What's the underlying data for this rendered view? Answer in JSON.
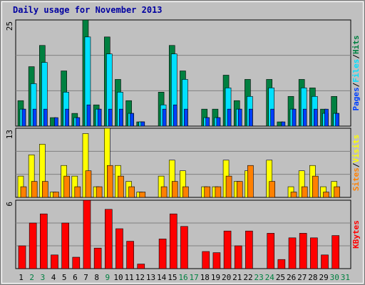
{
  "title": "Daily usage for November 2013",
  "legend_separator": "/",
  "highlight_color": "#008040",
  "highlight_categories": [
    1,
    2,
    8,
    15,
    16,
    22,
    23,
    29,
    30
  ],
  "chart_data": [
    {
      "type": "bar",
      "ylim": [
        0,
        25
      ],
      "yticks": [
        25
      ],
      "series": [
        {
          "name": "Hits",
          "color": "#008040",
          "values": [
            6,
            14,
            19,
            2,
            13,
            3,
            25,
            5,
            21,
            11,
            6,
            1,
            0,
            8,
            19,
            13,
            0,
            4,
            4,
            12,
            6,
            11,
            0,
            11,
            1,
            7,
            11,
            9,
            4,
            7,
            0
          ]
        },
        {
          "name": "Files",
          "color": "#00e0ff",
          "values": [
            4,
            10,
            15,
            0,
            8,
            2,
            21,
            4,
            17,
            8,
            3,
            1,
            0,
            5,
            17,
            11,
            0,
            2,
            2,
            9,
            4,
            7,
            0,
            9,
            0,
            4,
            9,
            7,
            3,
            3,
            0
          ]
        },
        {
          "name": "Pages",
          "color": "#0040ff",
          "values": [
            4,
            4,
            4,
            2,
            4,
            2,
            5,
            4,
            4,
            4,
            3,
            1,
            0,
            4,
            5,
            4,
            0,
            2,
            2,
            4,
            4,
            4,
            0,
            4,
            1,
            4,
            4,
            4,
            4,
            3,
            0
          ]
        }
      ]
    },
    {
      "type": "bar",
      "ylim": [
        0,
        13
      ],
      "yticks": [
        13
      ],
      "series": [
        {
          "name": "Visits",
          "color": "#ffff00",
          "values": [
            4,
            8,
            10,
            1,
            6,
            4,
            12,
            2,
            13,
            6,
            3,
            1,
            0,
            4,
            7,
            5,
            0,
            2,
            2,
            7,
            3,
            5,
            0,
            7,
            0,
            2,
            5,
            6,
            2,
            3,
            0
          ]
        },
        {
          "name": "Sites",
          "color": "#ff8000",
          "values": [
            2,
            3,
            3,
            1,
            4,
            2,
            5,
            2,
            6,
            4,
            2,
            1,
            0,
            2,
            3,
            2,
            0,
            2,
            2,
            4,
            3,
            6,
            0,
            3,
            0,
            1,
            2,
            4,
            1,
            2,
            0
          ]
        }
      ]
    },
    {
      "type": "bar",
      "ylim": [
        0,
        6
      ],
      "yticks": [
        6
      ],
      "categories": [
        "1",
        "2",
        "3",
        "4",
        "5",
        "6",
        "7",
        "8",
        "9",
        "10",
        "11",
        "12",
        "13",
        "14",
        "15",
        "16",
        "17",
        "18",
        "19",
        "20",
        "21",
        "22",
        "23",
        "24",
        "25",
        "26",
        "27",
        "28",
        "29",
        "30",
        "31"
      ],
      "series": [
        {
          "name": "KBytes",
          "color": "#ff0000",
          "values": [
            2,
            4,
            4.8,
            1.2,
            4,
            1,
            6,
            1.8,
            5.2,
            3.5,
            2.4,
            0.4,
            0,
            2.6,
            4.8,
            3.7,
            0,
            1.5,
            1.4,
            3.3,
            2,
            3.3,
            0,
            3.1,
            0.8,
            2.7,
            3.1,
            2.7,
            1.2,
            2.9,
            0
          ]
        }
      ]
    }
  ]
}
